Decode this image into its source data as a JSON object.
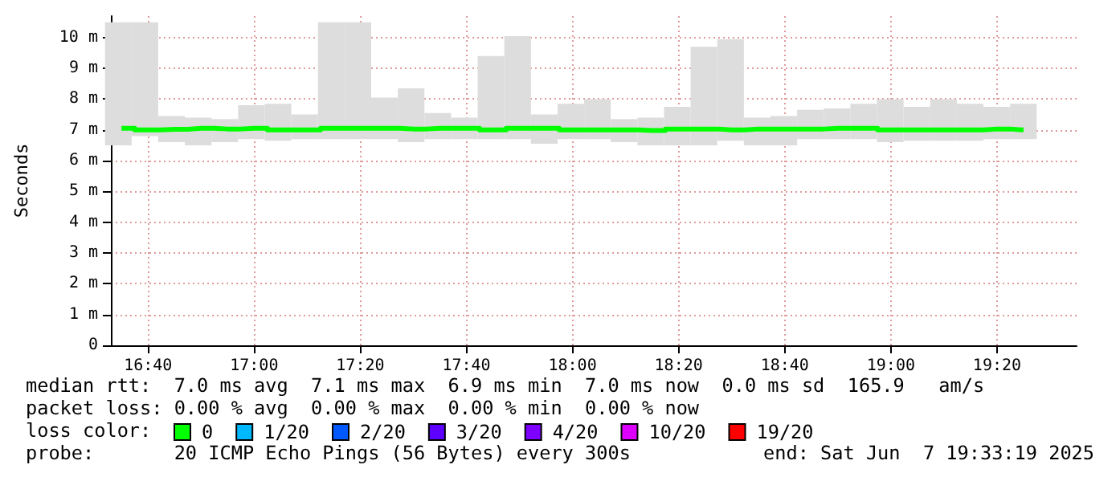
{
  "chart_data": {
    "type": "bar",
    "ylabel": "Seconds",
    "x": [
      "2025-06-07T16:35",
      "2025-06-07T16:40",
      "2025-06-07T16:45",
      "2025-06-07T16:50",
      "2025-06-07T16:55",
      "2025-06-07T17:00",
      "2025-06-07T17:05",
      "2025-06-07T17:10",
      "2025-06-07T17:15",
      "2025-06-07T17:20",
      "2025-06-07T17:25",
      "2025-06-07T17:30",
      "2025-06-07T17:35",
      "2025-06-07T17:40",
      "2025-06-07T17:45",
      "2025-06-07T17:50",
      "2025-06-07T17:55",
      "2025-06-07T18:00",
      "2025-06-07T18:05",
      "2025-06-07T18:10",
      "2025-06-07T18:15",
      "2025-06-07T18:20",
      "2025-06-07T18:25",
      "2025-06-07T18:30",
      "2025-06-07T18:35",
      "2025-06-07T18:40",
      "2025-06-07T18:45",
      "2025-06-07T18:50",
      "2025-06-07T18:55",
      "2025-06-07T19:00",
      "2025-06-07T19:05",
      "2025-06-07T19:10",
      "2025-06-07T19:15",
      "2025-06-07T19:20",
      "2025-06-07T19:25"
    ],
    "series": [
      {
        "color": "#dddddd",
        "base": [
          6.5,
          6.8,
          6.6,
          6.5,
          6.6,
          6.7,
          6.65,
          6.7,
          6.7,
          6.7,
          6.7,
          6.6,
          6.7,
          6.7,
          6.7,
          6.7,
          6.55,
          6.7,
          6.7,
          6.6,
          6.5,
          6.5,
          6.5,
          6.65,
          6.5,
          6.5,
          6.7,
          6.7,
          6.7,
          6.6,
          6.65,
          6.65,
          6.65,
          6.7,
          6.7
        ],
        "values": [
          4.0,
          3.7,
          0.85,
          0.9,
          0.75,
          1.1,
          1.2,
          0.8,
          3.8,
          3.8,
          1.35,
          1.75,
          0.85,
          0.7,
          2.7,
          3.35,
          0.95,
          1.15,
          1.3,
          0.75,
          0.9,
          1.25,
          3.2,
          3.3,
          0.9,
          0.95,
          0.95,
          1.0,
          1.15,
          1.4,
          1.1,
          1.35,
          1.2,
          1.05,
          1.15
        ]
      },
      {
        "type": "step",
        "name": "0",
        "color": "#00ff00",
        "values": [
          7.05,
          7.0,
          7.02,
          7.05,
          7.03,
          7.05,
          7.0,
          7.0,
          7.05,
          7.05,
          7.05,
          7.03,
          7.05,
          7.05,
          7.0,
          7.05,
          7.05,
          7.0,
          7.0,
          7.0,
          6.98,
          7.03,
          7.03,
          7.0,
          7.03,
          7.03,
          7.03,
          7.05,
          7.05,
          7.0,
          7.0,
          7.0,
          7.0,
          7.03,
          7.0
        ]
      },
      {
        "type": "step",
        "name": "1/20",
        "color": "#00b8ff",
        "values": [
          null,
          null,
          null,
          null,
          null,
          null,
          null,
          null,
          null,
          null,
          null,
          null,
          null,
          null,
          null,
          null,
          null,
          null,
          null,
          null,
          null,
          null,
          null,
          null,
          null,
          null,
          null,
          null,
          null,
          null,
          null,
          null,
          null,
          null,
          null
        ]
      },
      {
        "type": "step",
        "name": "2/20",
        "color": "#0059ff",
        "values": [
          null,
          null,
          null,
          null,
          null,
          null,
          null,
          null,
          null,
          null,
          null,
          null,
          null,
          null,
          null,
          null,
          null,
          null,
          null,
          null,
          null,
          null,
          null,
          null,
          null,
          null,
          null,
          null,
          null,
          null,
          null,
          null,
          null,
          null,
          null
        ]
      },
      {
        "type": "step",
        "name": "3/20",
        "color": "#5e00ff",
        "values": [
          null,
          null,
          null,
          null,
          null,
          null,
          null,
          null,
          null,
          null,
          null,
          null,
          null,
          null,
          null,
          null,
          null,
          null,
          null,
          null,
          null,
          null,
          null,
          null,
          null,
          null,
          null,
          null,
          null,
          null,
          null,
          null,
          null,
          null,
          null
        ]
      },
      {
        "type": "step",
        "name": "4/20",
        "color": "#7e00ff",
        "values": [
          null,
          null,
          null,
          null,
          null,
          null,
          null,
          null,
          null,
          null,
          null,
          null,
          null,
          null,
          null,
          null,
          null,
          null,
          null,
          null,
          null,
          null,
          null,
          null,
          null,
          null,
          null,
          null,
          null,
          null,
          null,
          null,
          null,
          null,
          null
        ]
      },
      {
        "type": "step",
        "name": "10/20",
        "color": "#dd00ff",
        "values": [
          null,
          null,
          null,
          null,
          null,
          null,
          null,
          null,
          null,
          null,
          null,
          null,
          null,
          null,
          null,
          null,
          null,
          null,
          null,
          null,
          null,
          null,
          null,
          null,
          null,
          null,
          null,
          null,
          null,
          null,
          null,
          null,
          null,
          null,
          null
        ]
      },
      {
        "type": "step",
        "name": "19/20",
        "color": "#ff0000",
        "values": [
          null,
          null,
          null,
          null,
          null,
          null,
          null,
          null,
          null,
          null,
          null,
          null,
          null,
          null,
          null,
          null,
          null,
          null,
          null,
          null,
          null,
          null,
          null,
          null,
          null,
          null,
          null,
          null,
          null,
          null,
          null,
          null,
          null,
          null,
          null
        ]
      }
    ],
    "xlim": [
      "2025-06-07T16:33",
      "2025-06-07T19:35"
    ],
    "xticks": [
      {
        "value": "2025-06-07T16:40",
        "label": "16:40"
      },
      {
        "value": "2025-06-07T17:00",
        "label": "17:00"
      },
      {
        "value": "2025-06-07T17:20",
        "label": "17:20"
      },
      {
        "value": "2025-06-07T17:40",
        "label": "17:40"
      },
      {
        "value": "2025-06-07T18:00",
        "label": "18:00"
      },
      {
        "value": "2025-06-07T18:20",
        "label": "18:20"
      },
      {
        "value": "2025-06-07T18:40",
        "label": "18:40"
      },
      {
        "value": "2025-06-07T19:00",
        "label": "19:00"
      },
      {
        "value": "2025-06-07T19:20",
        "label": "19:20"
      }
    ],
    "ylim": [
      0,
      10.7
    ],
    "yticks": [
      0,
      {
        "value": 1,
        "label": "1 m"
      },
      {
        "value": 2,
        "label": "2 m"
      },
      {
        "value": 3,
        "label": "3 m"
      },
      {
        "value": 4,
        "label": "4 m"
      },
      {
        "value": 5,
        "label": "5 m"
      },
      {
        "value": 6,
        "label": "6 m"
      },
      {
        "value": 7,
        "label": "7 m"
      },
      {
        "value": 8,
        "label": "8 m"
      },
      {
        "value": 9,
        "label": "9 m"
      },
      {
        "value": 10,
        "label": "10 m"
      }
    ],
    "grid": true,
    "legend": "bottom",
    "annotations": [
      "median rtt:  7.0 ms avg  7.1 ms max  6.9 ms min  7.0 ms now  0.0 ms sd  165.9   am/s",
      "packet loss: 0.00 % avg  0.00 % max  0.00 % min  0.00 % now",
      "loss color:",
      "probe:       20 ICMP Echo Pings (56 Bytes) every 300s",
      "end: Sat Jun  7 19:33:19 2025"
    ]
  }
}
